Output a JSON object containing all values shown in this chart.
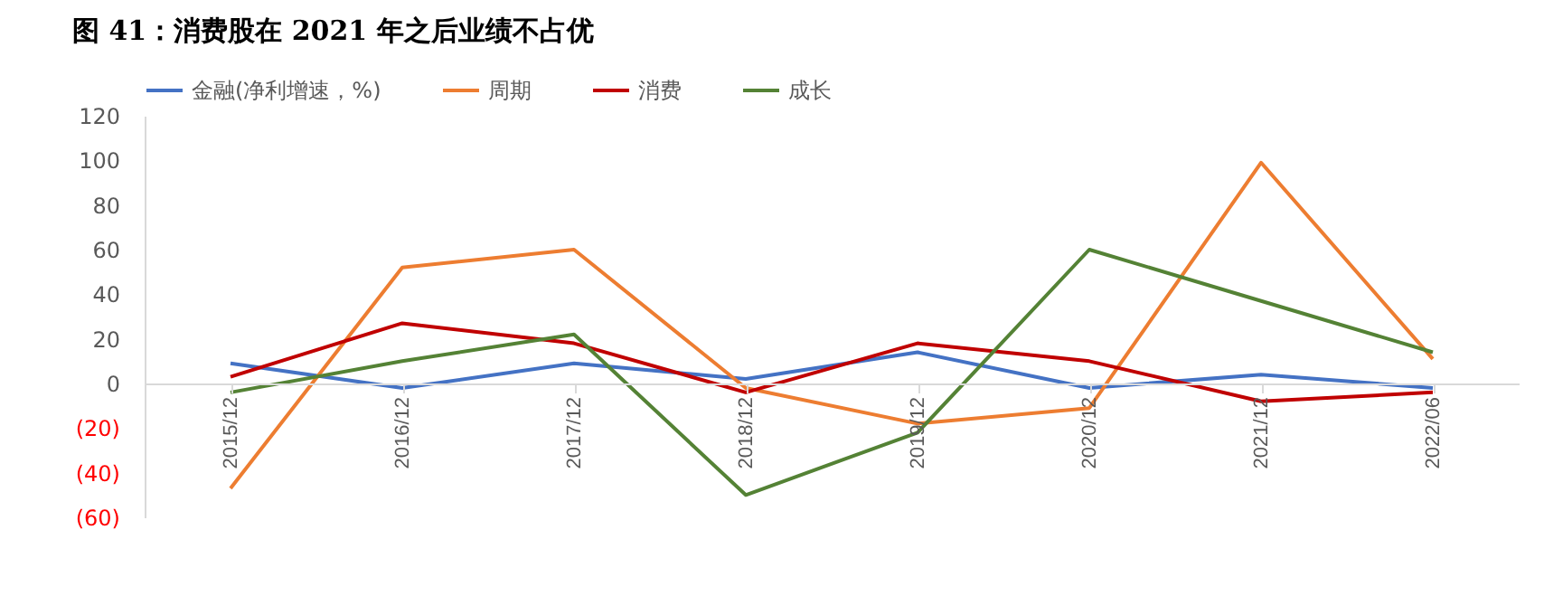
{
  "chart_data": {
    "type": "line",
    "title": "图 41：消费股在 2021 年之后业绩不占优",
    "categories": [
      "2015/12",
      "2016/12",
      "2017/12",
      "2018/12",
      "2019/12",
      "2020/12",
      "2021/12",
      "2022/06"
    ],
    "series": [
      {
        "name": "金融(净利增速，%)",
        "color": "#4472c4",
        "values": [
          9,
          -2,
          9,
          2,
          14,
          -2,
          4,
          -2
        ]
      },
      {
        "name": "周期",
        "color": "#ed7d31",
        "values": [
          -47,
          52,
          60,
          -2,
          -18,
          -11,
          99,
          11
        ]
      },
      {
        "name": "消费",
        "color": "#c00000",
        "values": [
          3,
          27,
          18,
          -4,
          18,
          10,
          -8,
          -4
        ]
      },
      {
        "name": "成长",
        "color": "#548235",
        "values": [
          -4,
          10,
          22,
          -50,
          -22,
          60,
          37,
          14
        ]
      }
    ],
    "ylim": [
      -60,
      120
    ],
    "yticks": [
      {
        "value": -60,
        "label": "(60)"
      },
      {
        "value": -40,
        "label": "(40)"
      },
      {
        "value": -20,
        "label": "(20)"
      },
      0,
      20,
      40,
      60,
      80,
      100,
      120
    ],
    "legend": "top",
    "grid": false,
    "marker": "none",
    "line_style": "solid"
  }
}
